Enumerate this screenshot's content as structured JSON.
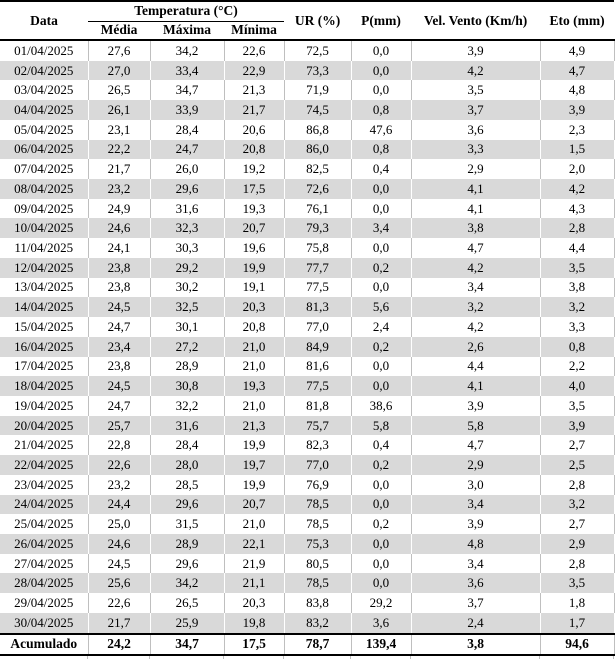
{
  "table": {
    "headers": {
      "data": "Data",
      "temperatura": "Temperatura (°C)",
      "media": "Média",
      "maxima": "Máxima",
      "minima": "Mínima",
      "ur": "UR (%)",
      "p": "P(mm)",
      "vel_vento": "Vel. Vento (Km/h)",
      "eto": "Eto (mm)"
    },
    "rows": [
      [
        "01/04/2025",
        "27,6",
        "34,2",
        "22,6",
        "72,5",
        "0,0",
        "3,9",
        "4,9"
      ],
      [
        "02/04/2025",
        "27,0",
        "33,4",
        "22,9",
        "73,3",
        "0,0",
        "4,2",
        "4,7"
      ],
      [
        "03/04/2025",
        "26,5",
        "34,7",
        "21,3",
        "71,9",
        "0,0",
        "3,5",
        "4,8"
      ],
      [
        "04/04/2025",
        "26,1",
        "33,9",
        "21,7",
        "74,5",
        "0,8",
        "3,7",
        "3,9"
      ],
      [
        "05/04/2025",
        "23,1",
        "28,4",
        "20,6",
        "86,8",
        "47,6",
        "3,6",
        "2,3"
      ],
      [
        "06/04/2025",
        "22,2",
        "24,7",
        "20,8",
        "86,0",
        "0,8",
        "3,3",
        "1,5"
      ],
      [
        "07/04/2025",
        "21,7",
        "26,0",
        "19,2",
        "82,5",
        "0,4",
        "2,9",
        "2,0"
      ],
      [
        "08/04/2025",
        "23,2",
        "29,6",
        "17,5",
        "72,6",
        "0,0",
        "4,1",
        "4,2"
      ],
      [
        "09/04/2025",
        "24,9",
        "31,6",
        "19,3",
        "76,1",
        "0,0",
        "4,1",
        "4,3"
      ],
      [
        "10/04/2025",
        "24,6",
        "32,3",
        "20,7",
        "79,3",
        "3,4",
        "3,8",
        "2,8"
      ],
      [
        "11/04/2025",
        "24,1",
        "30,3",
        "19,6",
        "75,8",
        "0,0",
        "4,7",
        "4,4"
      ],
      [
        "12/04/2025",
        "23,8",
        "29,2",
        "19,9",
        "77,7",
        "0,2",
        "4,2",
        "3,5"
      ],
      [
        "13/04/2025",
        "23,8",
        "30,2",
        "19,1",
        "77,5",
        "0,0",
        "3,4",
        "3,8"
      ],
      [
        "14/04/2025",
        "24,5",
        "32,5",
        "20,3",
        "81,3",
        "5,6",
        "3,2",
        "3,2"
      ],
      [
        "15/04/2025",
        "24,7",
        "30,1",
        "20,8",
        "77,0",
        "2,4",
        "4,2",
        "3,3"
      ],
      [
        "16/04/2025",
        "23,4",
        "27,2",
        "21,0",
        "84,9",
        "0,2",
        "2,6",
        "0,8"
      ],
      [
        "17/04/2025",
        "23,8",
        "28,9",
        "21,0",
        "81,6",
        "0,0",
        "4,4",
        "2,2"
      ],
      [
        "18/04/2025",
        "24,5",
        "30,8",
        "19,3",
        "77,5",
        "0,0",
        "4,1",
        "4,0"
      ],
      [
        "19/04/2025",
        "24,7",
        "32,2",
        "21,0",
        "81,8",
        "38,6",
        "3,9",
        "3,5"
      ],
      [
        "20/04/2025",
        "25,7",
        "31,6",
        "21,3",
        "75,7",
        "5,8",
        "5,8",
        "3,9"
      ],
      [
        "21/04/2025",
        "22,8",
        "28,4",
        "19,9",
        "82,3",
        "0,4",
        "4,7",
        "2,7"
      ],
      [
        "22/04/2025",
        "22,6",
        "28,0",
        "19,7",
        "77,0",
        "0,2",
        "2,9",
        "2,5"
      ],
      [
        "23/04/2025",
        "23,2",
        "28,5",
        "19,9",
        "76,9",
        "0,0",
        "3,0",
        "2,8"
      ],
      [
        "24/04/2025",
        "24,4",
        "29,6",
        "20,7",
        "78,5",
        "0,0",
        "3,4",
        "3,2"
      ],
      [
        "25/04/2025",
        "25,0",
        "31,5",
        "21,0",
        "78,5",
        "0,2",
        "3,9",
        "2,7"
      ],
      [
        "26/04/2025",
        "24,6",
        "28,9",
        "22,1",
        "75,3",
        "0,0",
        "4,8",
        "2,9"
      ],
      [
        "27/04/2025",
        "24,5",
        "29,6",
        "21,9",
        "80,5",
        "0,0",
        "3,4",
        "2,8"
      ],
      [
        "28/04/2025",
        "25,6",
        "34,2",
        "21,1",
        "78,5",
        "0,0",
        "3,6",
        "3,5"
      ],
      [
        "29/04/2025",
        "22,6",
        "26,5",
        "20,3",
        "83,8",
        "29,2",
        "3,7",
        "1,8"
      ],
      [
        "30/04/2025",
        "21,7",
        "25,9",
        "19,8",
        "83,2",
        "3,6",
        "2,4",
        "1,7"
      ]
    ],
    "footer": {
      "label": "Acumulado",
      "values": [
        "24,2",
        "34,7",
        "17,5",
        "78,7",
        "139,4",
        "3,8",
        "94,6"
      ]
    }
  },
  "colors": {
    "band_gray": "#d9d9d9",
    "grid_gray": "#bfbfbf",
    "border_black": "#000000"
  }
}
